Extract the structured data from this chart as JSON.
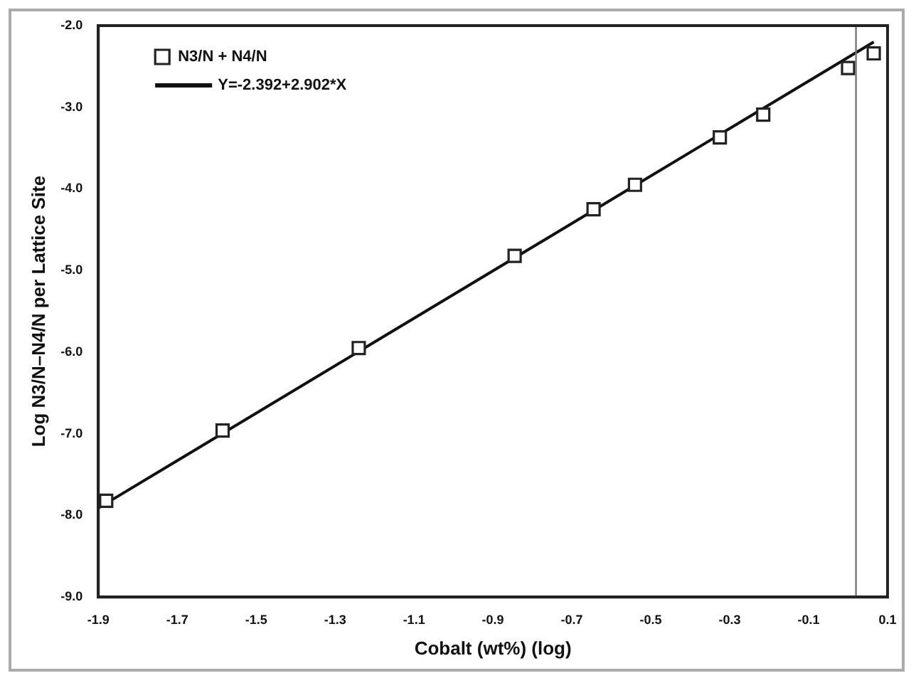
{
  "chart_data": {
    "type": "scatter",
    "xlabel": "Cobalt (wt%) (log)",
    "ylabel": "Log N3/N–N4/N per Lattice Site",
    "series": [
      {
        "name": "N3/N + N4/N",
        "type": "scatter",
        "marker": "square",
        "color": "#222222",
        "x": [
          -1.88,
          -1.585,
          -1.24,
          -0.845,
          -0.645,
          -0.54,
          -0.325,
          -0.215,
          0.0,
          0.065
        ],
        "values": [
          -7.82,
          -6.96,
          -5.95,
          -4.82,
          -4.25,
          -3.95,
          -3.37,
          -3.09,
          -2.52,
          -2.34
        ]
      },
      {
        "name": "Y=-2.392+2.902*X",
        "type": "line",
        "marker": "none",
        "line_style": "solid",
        "color": "#111111",
        "x": [
          -1.9,
          0.065
        ],
        "values": [
          -7.91,
          -2.2
        ]
      }
    ],
    "xlim": [
      -1.9,
      0.1
    ],
    "xticks": [
      -1.9,
      -1.7,
      -1.5,
      -1.3,
      -1.1,
      -0.9,
      -0.7,
      -0.5,
      -0.3,
      -0.1,
      0.1
    ],
    "ylim": [
      -9,
      -2
    ],
    "yticks": [
      {
        "value": -9,
        "label": "-9.0"
      },
      {
        "value": -8,
        "label": "-8.0"
      },
      {
        "value": -7,
        "label": "-7.0"
      },
      {
        "value": -6,
        "label": "-6.0"
      },
      {
        "value": -5,
        "label": "-5.0"
      },
      {
        "value": -4,
        "label": "-4.0"
      },
      {
        "value": -3,
        "label": "-3.0"
      },
      {
        "value": -2,
        "label": "-2.0"
      }
    ],
    "ref_lines": [
      {
        "axis": "x",
        "value": 0.02,
        "color": "#777777"
      }
    ],
    "grid": false,
    "legend": "top left"
  }
}
